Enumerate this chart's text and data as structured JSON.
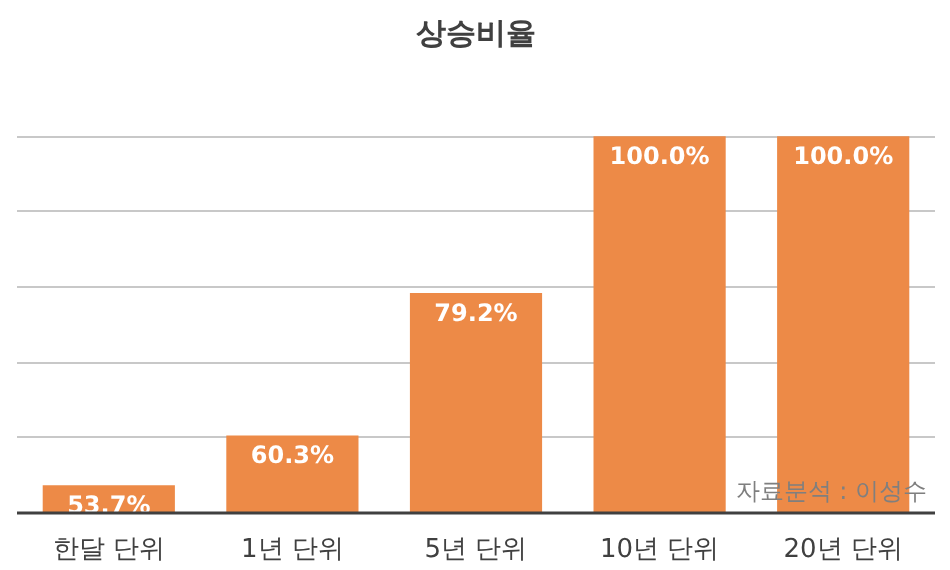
{
  "chart_data": {
    "type": "bar",
    "title": "상승비율",
    "categories": [
      "한달 단위",
      "1년 단위",
      "5년 단위",
      "10년 단위",
      "20년 단위"
    ],
    "values": [
      53.7,
      60.3,
      79.2,
      100.0,
      100.0
    ],
    "value_labels": [
      "53.7%",
      "60.3%",
      "79.2%",
      "100.0%",
      "100.0%"
    ],
    "color": "#ed8a47",
    "ylim": [
      50,
      100
    ],
    "yticks": [
      {
        "value": 50,
        "label": null
      },
      {
        "value": 60,
        "label": null
      },
      {
        "value": 70,
        "label": null
      },
      {
        "value": 80,
        "label": null
      },
      {
        "value": 90,
        "label": null
      },
      {
        "value": 100,
        "label": null
      }
    ],
    "grid": "y",
    "tick_labels": "x",
    "annotations": [
      "자료분석 : 이성수"
    ]
  }
}
